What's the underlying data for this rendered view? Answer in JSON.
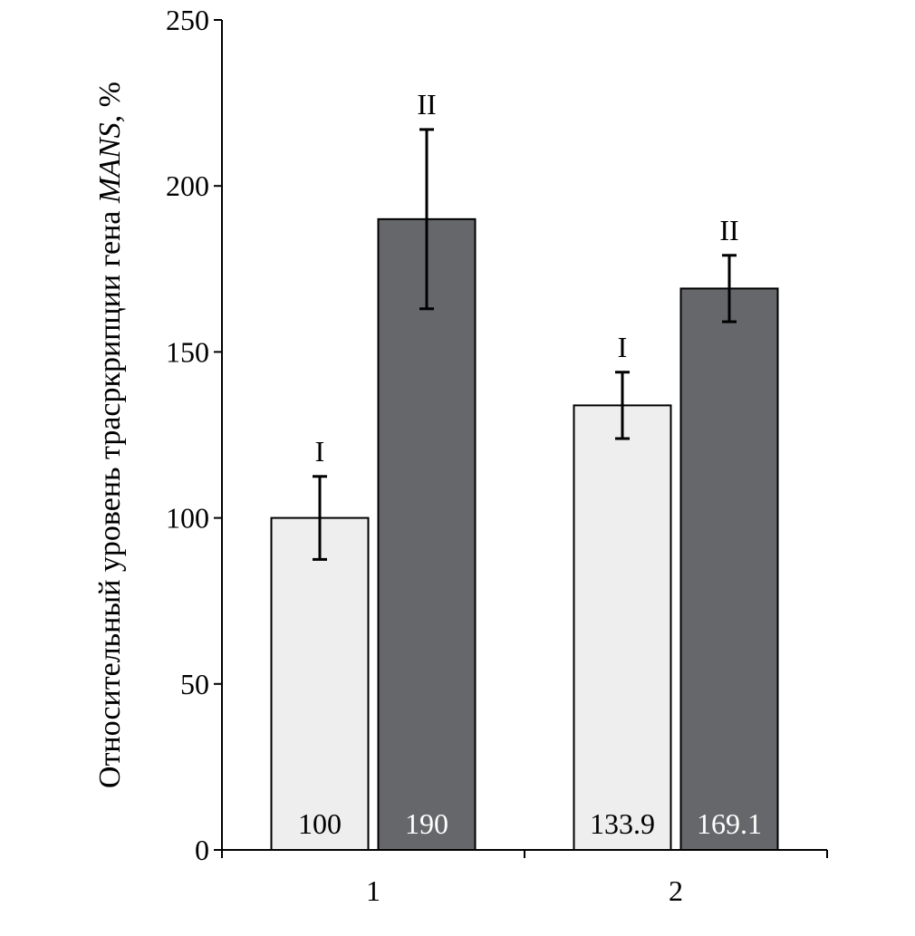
{
  "chart_data": {
    "type": "bar",
    "title": "",
    "xlabel": "",
    "ylabel": "Относительный уровень трасркрипции гена",
    "ylabel_italic": "MANS",
    "ylabel_suffix": ", %",
    "ylim": [
      0,
      250
    ],
    "yticks": [
      0,
      50,
      100,
      150,
      200,
      250
    ],
    "categories": [
      "1",
      "2"
    ],
    "grid": false,
    "series": [
      {
        "label": "I",
        "color": "#eeeeee",
        "text_color": "#000000",
        "values": [
          100,
          133.9
        ],
        "value_labels": [
          "100",
          "133.9"
        ],
        "errors": [
          12.5,
          10
        ]
      },
      {
        "label": "II",
        "color": "#66676a",
        "text_color": "#ffffff",
        "values": [
          190,
          169.1
        ],
        "value_labels": [
          "190",
          "169.1"
        ],
        "errors": [
          27,
          10
        ]
      }
    ]
  }
}
